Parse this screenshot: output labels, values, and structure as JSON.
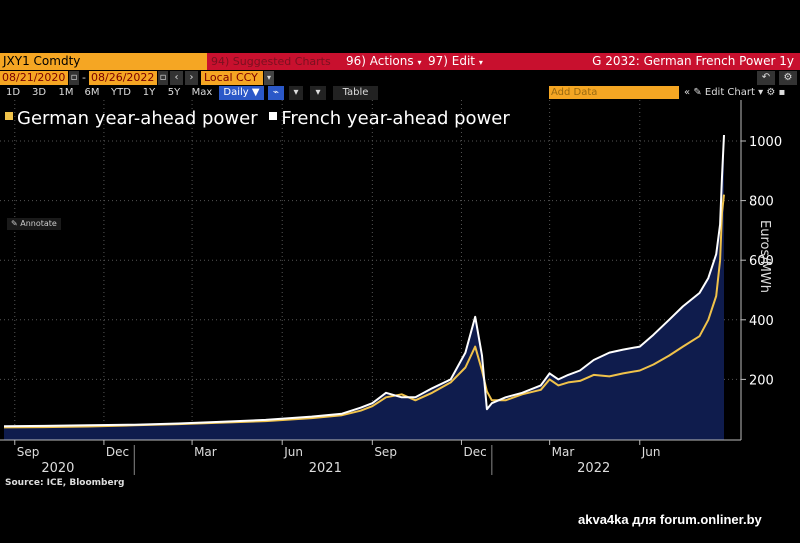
{
  "toolbar": {
    "security": "JXY1 Comdty",
    "suggested": "94) Suggested Charts",
    "actions": "96) Actions",
    "edit": "97) Edit",
    "title": "G 2032: German French Power 1y",
    "start_date": "08/21/2020",
    "end_date": "08/26/2022",
    "currency": "Local CCY",
    "ranges": [
      "1D",
      "3D",
      "1M",
      "6M",
      "YTD",
      "1Y",
      "5Y",
      "Max"
    ],
    "frequency": "Daily",
    "table": "Table",
    "add_data_placeholder": "Add Data",
    "edit_chart": "Edit Chart"
  },
  "annotate_label": "Annotate",
  "source": "Source: ICE, Bloomberg",
  "watermark": "akva4ka для forum.onliner.by",
  "colors": {
    "german": "#f0c24a",
    "french": "#ffffff",
    "area": "#0f1c4d",
    "accent": "#f5a623",
    "red": "#c8102e"
  },
  "chart_data": {
    "type": "line",
    "legend": [
      "German year-ahead power",
      "French year-ahead power"
    ],
    "ylabel": "Euros/MWh",
    "ylim": [
      0,
      1060
    ],
    "yticks": [
      200,
      400,
      600,
      800,
      1000
    ],
    "x_ticks": [
      "Sep",
      "Dec",
      "Mar",
      "Jun",
      "Sep",
      "Dec",
      "Mar",
      "Jun"
    ],
    "x_tick_dates": [
      "2020-09-01",
      "2020-12-01",
      "2021-03-01",
      "2021-06-01",
      "2021-09-01",
      "2021-12-01",
      "2022-03-01",
      "2022-06-01"
    ],
    "year_labels": [
      "2020",
      "2021",
      "2022"
    ],
    "year_label_dates": [
      "2020-10-15",
      "2021-07-15",
      "2022-04-15"
    ],
    "year_separator_dates": [
      "2021-01-01",
      "2022-01-01"
    ],
    "x_range": [
      "2020-08-21",
      "2022-08-26"
    ],
    "series": [
      {
        "name": "German year-ahead power",
        "x": [
          "2020-08-21",
          "2020-10-01",
          "2020-11-15",
          "2021-01-01",
          "2021-02-15",
          "2021-04-01",
          "2021-05-15",
          "2021-07-01",
          "2021-08-01",
          "2021-08-20",
          "2021-09-01",
          "2021-09-15",
          "2021-10-01",
          "2021-10-15",
          "2021-11-01",
          "2021-11-20",
          "2021-12-05",
          "2021-12-15",
          "2021-12-22",
          "2021-12-27",
          "2022-01-01",
          "2022-01-15",
          "2022-02-01",
          "2022-02-20",
          "2022-03-01",
          "2022-03-10",
          "2022-03-20",
          "2022-04-01",
          "2022-04-15",
          "2022-05-01",
          "2022-05-15",
          "2022-06-01",
          "2022-06-15",
          "2022-07-01",
          "2022-07-15",
          "2022-08-01",
          "2022-08-10",
          "2022-08-18",
          "2022-08-22",
          "2022-08-24",
          "2022-08-26"
        ],
        "y": [
          39,
          40,
          42,
          46,
          50,
          55,
          60,
          70,
          80,
          95,
          110,
          140,
          150,
          130,
          155,
          190,
          240,
          310,
          230,
          160,
          130,
          130,
          150,
          165,
          200,
          180,
          190,
          195,
          215,
          210,
          220,
          230,
          250,
          280,
          310,
          345,
          400,
          480,
          600,
          760,
          820
        ]
      },
      {
        "name": "French year-ahead power",
        "x": [
          "2020-08-21",
          "2020-10-01",
          "2020-11-15",
          "2021-01-01",
          "2021-02-15",
          "2021-04-01",
          "2021-05-15",
          "2021-07-01",
          "2021-08-01",
          "2021-08-20",
          "2021-09-01",
          "2021-09-15",
          "2021-10-01",
          "2021-10-15",
          "2021-11-01",
          "2021-11-20",
          "2021-12-05",
          "2021-12-15",
          "2021-12-22",
          "2021-12-27",
          "2022-01-01",
          "2022-01-15",
          "2022-02-01",
          "2022-02-20",
          "2022-03-01",
          "2022-03-10",
          "2022-03-20",
          "2022-04-01",
          "2022-04-15",
          "2022-05-01",
          "2022-05-15",
          "2022-06-01",
          "2022-06-15",
          "2022-07-01",
          "2022-07-15",
          "2022-08-01",
          "2022-08-10",
          "2022-08-18",
          "2022-08-22",
          "2022-08-24",
          "2022-08-26"
        ],
        "y": [
          43,
          44,
          46,
          48,
          52,
          58,
          64,
          75,
          85,
          105,
          120,
          155,
          140,
          140,
          170,
          200,
          290,
          410,
          280,
          100,
          120,
          140,
          155,
          180,
          220,
          200,
          215,
          230,
          265,
          290,
          300,
          310,
          350,
          400,
          445,
          490,
          540,
          620,
          720,
          880,
          1020
        ]
      }
    ]
  }
}
